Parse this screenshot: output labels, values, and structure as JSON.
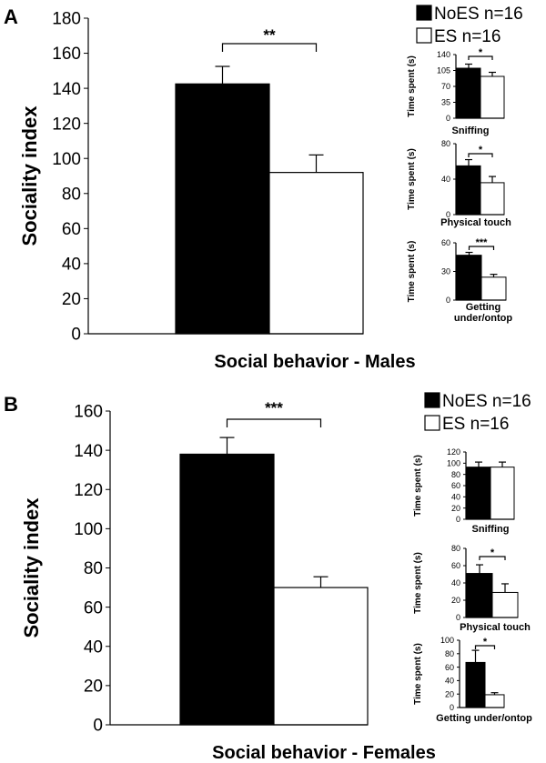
{
  "colors": {
    "noes": "#000000",
    "es": "#ffffff",
    "outline": "#000000"
  },
  "panels": [
    {
      "letter": "A",
      "legend": [
        "NoES n=16",
        "ES n=16"
      ],
      "main": {
        "type": "bar",
        "categories": [
          "NoES",
          "ES"
        ],
        "values": [
          142.5,
          92
        ],
        "errors": [
          10,
          10
        ],
        "ylabel": "Sociality index",
        "xlabel": "Social behavior - Males",
        "ylim": [
          0,
          180
        ],
        "ticks": [
          "0",
          "20",
          "40",
          "60",
          "80",
          "100",
          "120",
          "140",
          "160",
          "180"
        ],
        "significance": "**"
      },
      "insets": [
        {
          "ylabel": "Time spent (s)",
          "xlabel": [
            "Sniffing"
          ],
          "ylim": [
            0,
            140
          ],
          "ticks": [
            "0",
            "35",
            "70",
            "105",
            "140"
          ],
          "values": [
            110,
            92
          ],
          "errors": [
            9,
            9
          ],
          "significance": "*"
        },
        {
          "ylabel": "Time spent (s)",
          "xlabel": [
            "Physical touch"
          ],
          "ylim": [
            0,
            80
          ],
          "ticks": [
            "0",
            "40",
            "80"
          ],
          "values": [
            55,
            36
          ],
          "errors": [
            7,
            7
          ],
          "significance": "*"
        },
        {
          "ylabel": "Time spent (s)",
          "xlabel": [
            "Getting",
            "under/ontop"
          ],
          "ylim": [
            0,
            60
          ],
          "ticks": [
            "0",
            "30",
            "60"
          ],
          "values": [
            47,
            24
          ],
          "errors": [
            3,
            3
          ],
          "significance": "***"
        }
      ]
    },
    {
      "letter": "B",
      "legend": [
        "NoES n=16",
        "ES n=16"
      ],
      "main": {
        "type": "bar",
        "categories": [
          "NoES",
          "ES"
        ],
        "values": [
          138,
          70
        ],
        "errors": [
          8.5,
          5.5
        ],
        "ylabel": "Sociality index",
        "xlabel": "Social behavior - Females",
        "ylim": [
          0,
          160
        ],
        "ticks": [
          "0",
          "20",
          "40",
          "60",
          "80",
          "100",
          "120",
          "140",
          "160"
        ],
        "significance": "***"
      },
      "insets": [
        {
          "ylabel": "Time spent (s)",
          "xlabel": [
            "Sniffing"
          ],
          "ylim": [
            0,
            120
          ],
          "ticks": [
            "0",
            "20",
            "40",
            "60",
            "80",
            "100",
            "120"
          ],
          "values": [
            93,
            93
          ],
          "errors": [
            9,
            9
          ],
          "significance": ""
        },
        {
          "ylabel": "Time spent (s)",
          "xlabel": [
            "Physical touch"
          ],
          "ylim": [
            0,
            80
          ],
          "ticks": [
            "0",
            "20",
            "40",
            "60",
            "80"
          ],
          "values": [
            51,
            29
          ],
          "errors": [
            10,
            10
          ],
          "significance": "*"
        },
        {
          "ylabel": "Time spent (s)",
          "xlabel": [
            "Getting under/ontop"
          ],
          "ylim": [
            0,
            100
          ],
          "ticks": [
            "0",
            "20",
            "40",
            "60",
            "80",
            "100"
          ],
          "values": [
            67,
            19
          ],
          "errors": [
            18,
            3
          ],
          "significance": "*"
        }
      ]
    }
  ],
  "chart_data": [
    {
      "type": "bar",
      "categories": [
        "NoES",
        "ES"
      ],
      "values": [
        142.5,
        92
      ],
      "title": "",
      "xlabel": "Social behavior - Males",
      "ylabel": "Sociality index",
      "ylim": [
        0,
        180
      ]
    },
    {
      "type": "bar",
      "categories": [
        "NoES",
        "ES"
      ],
      "values": [
        110,
        92
      ],
      "title": "",
      "xlabel": "Sniffing",
      "ylabel": "Time spent (s)",
      "ylim": [
        0,
        140
      ]
    },
    {
      "type": "bar",
      "categories": [
        "NoES",
        "ES"
      ],
      "values": [
        55,
        36
      ],
      "title": "",
      "xlabel": "Physical touch",
      "ylabel": "Time spent (s)",
      "ylim": [
        0,
        80
      ]
    },
    {
      "type": "bar",
      "categories": [
        "NoES",
        "ES"
      ],
      "values": [
        47,
        24
      ],
      "title": "",
      "xlabel": "Getting under/ontop",
      "ylabel": "Time spent (s)",
      "ylim": [
        0,
        60
      ]
    },
    {
      "type": "bar",
      "categories": [
        "NoES",
        "ES"
      ],
      "values": [
        138,
        70
      ],
      "title": "",
      "xlabel": "Social behavior - Females",
      "ylabel": "Sociality index",
      "ylim": [
        0,
        160
      ]
    },
    {
      "type": "bar",
      "categories": [
        "NoES",
        "ES"
      ],
      "values": [
        93,
        93
      ],
      "title": "",
      "xlabel": "Sniffing",
      "ylabel": "Time spent (s)",
      "ylim": [
        0,
        120
      ]
    },
    {
      "type": "bar",
      "categories": [
        "NoES",
        "ES"
      ],
      "values": [
        51,
        29
      ],
      "title": "",
      "xlabel": "Physical touch",
      "ylabel": "Time spent (s)",
      "ylim": [
        0,
        80
      ]
    },
    {
      "type": "bar",
      "categories": [
        "NoES",
        "ES"
      ],
      "values": [
        67,
        19
      ],
      "title": "",
      "xlabel": "Getting under/ontop",
      "ylabel": "Time spent (s)",
      "ylim": [
        0,
        100
      ]
    }
  ]
}
